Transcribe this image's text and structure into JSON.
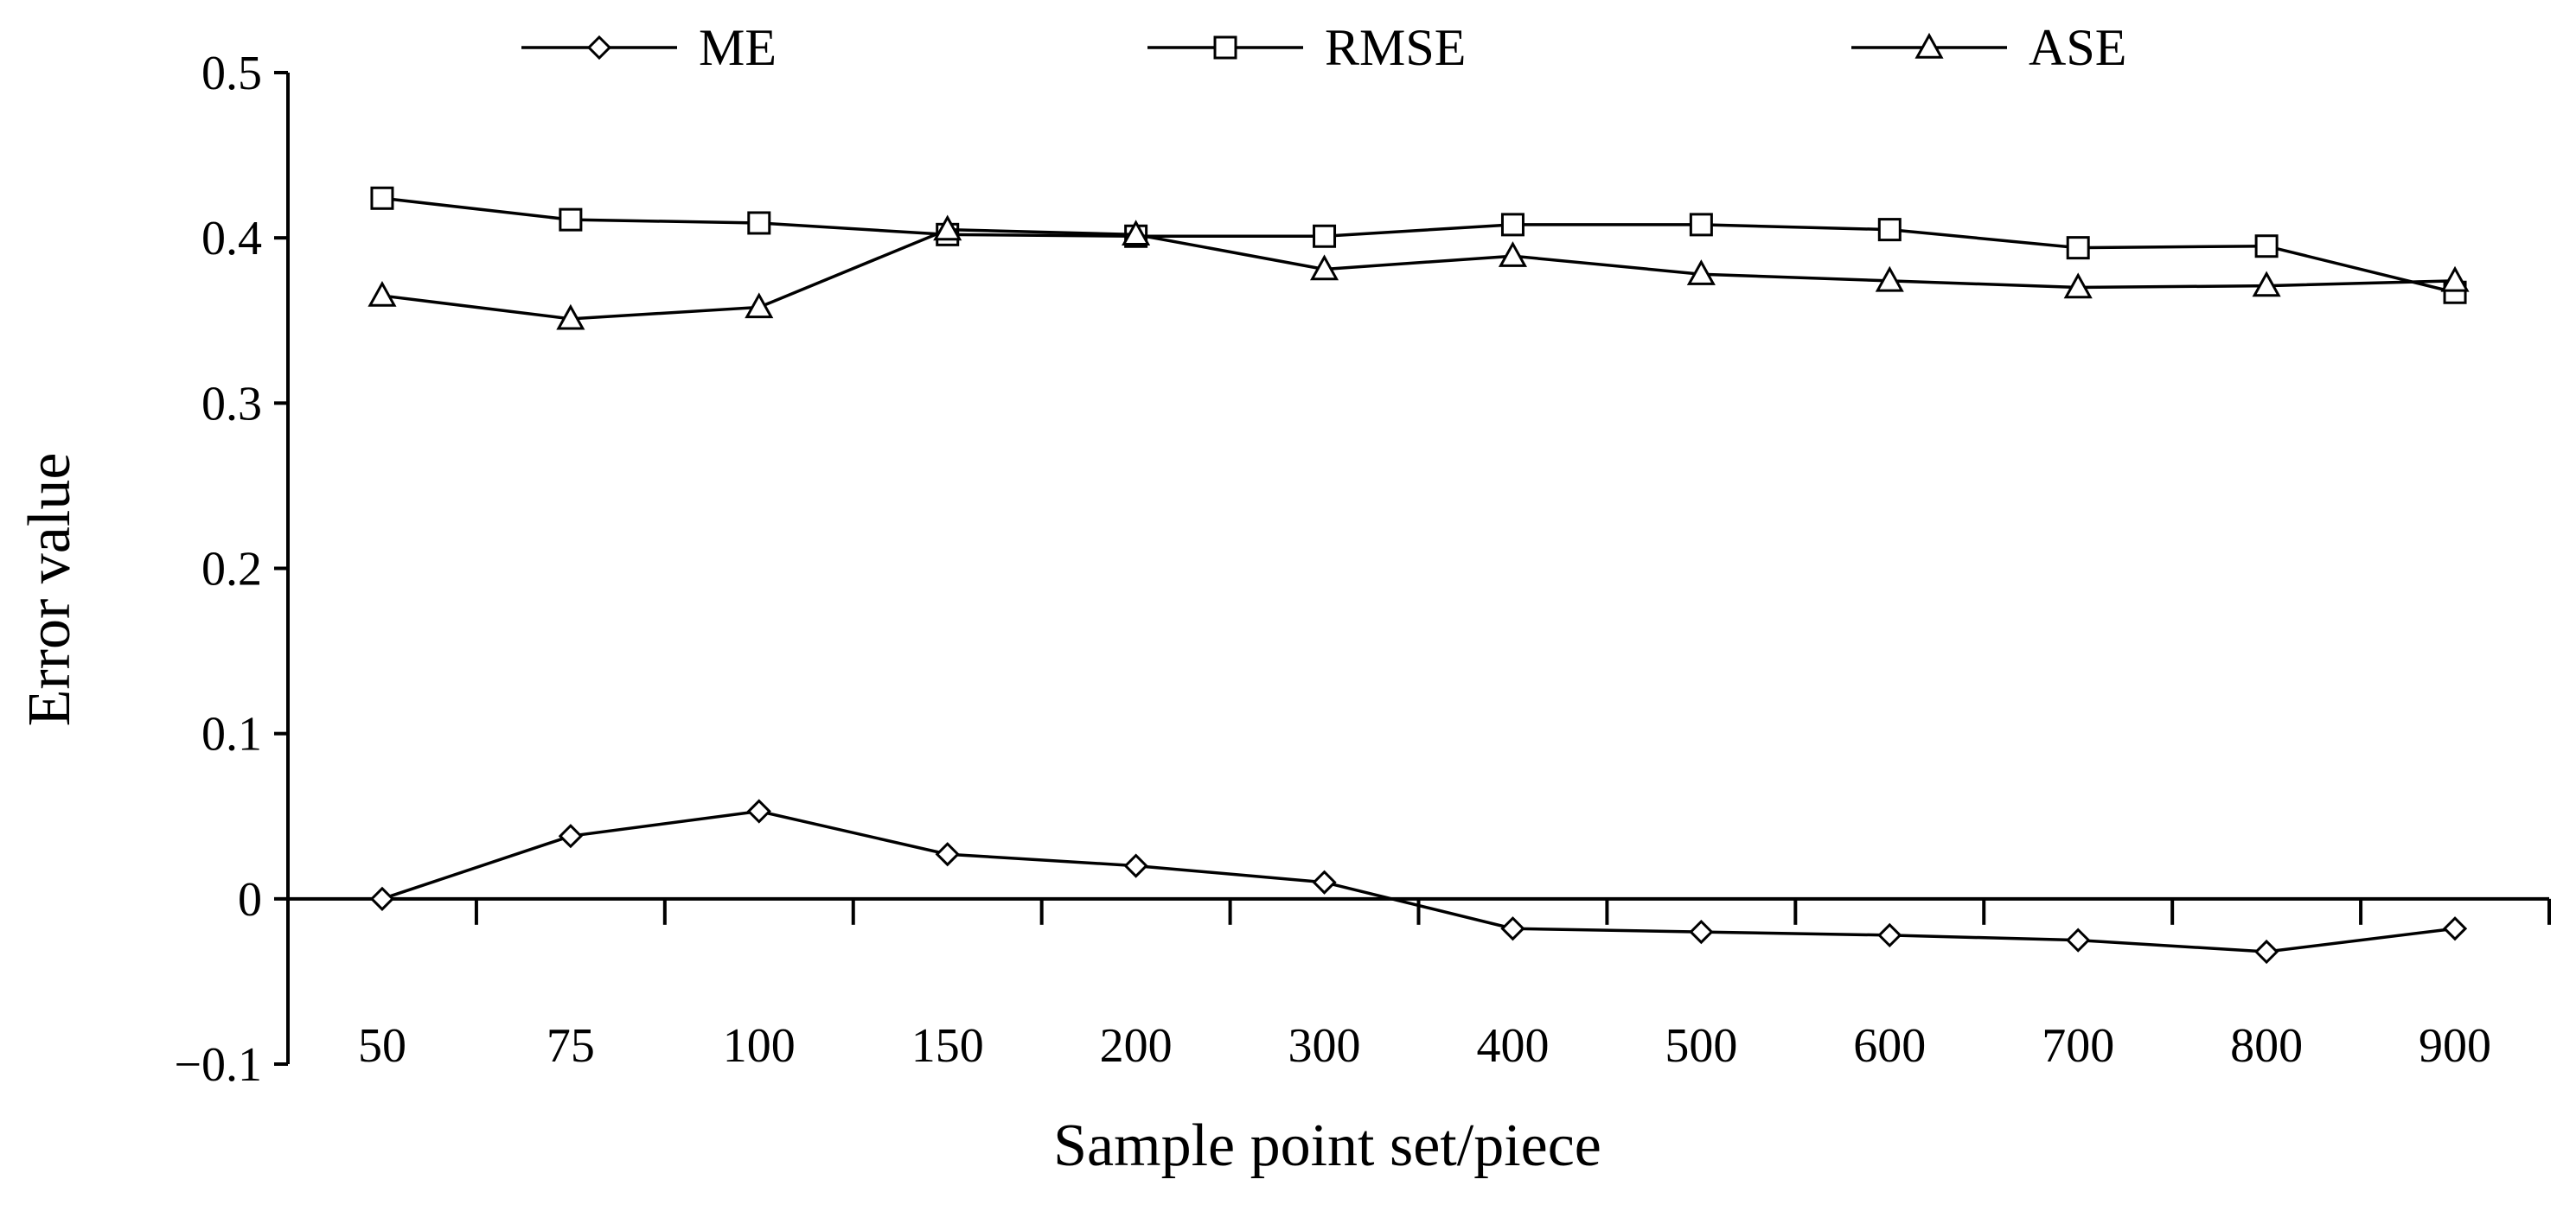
{
  "chart_data": {
    "type": "line",
    "categories": [
      "50",
      "75",
      "100",
      "150",
      "200",
      "300",
      "400",
      "500",
      "600",
      "700",
      "800",
      "900"
    ],
    "series": [
      {
        "name": "ME",
        "marker": "diamond",
        "values": [
          0.0,
          0.038,
          0.053,
          0.027,
          0.02,
          0.01,
          -0.018,
          -0.02,
          -0.022,
          -0.025,
          -0.032,
          -0.018
        ]
      },
      {
        "name": "RMSE",
        "marker": "square",
        "values": [
          0.424,
          0.411,
          0.409,
          0.402,
          0.401,
          0.401,
          0.408,
          0.408,
          0.405,
          0.394,
          0.395,
          0.367
        ]
      },
      {
        "name": "ASE",
        "marker": "triangle",
        "values": [
          0.365,
          0.351,
          0.358,
          0.405,
          0.402,
          0.381,
          0.389,
          0.378,
          0.374,
          0.37,
          0.371,
          0.374
        ]
      }
    ],
    "xlabel": "Sample point set/piece",
    "ylabel": "Error value",
    "ylim": [
      -0.1,
      0.5
    ],
    "yticks": [
      -0.1,
      0,
      0.1,
      0.2,
      0.3,
      0.4,
      0.5
    ],
    "ytick_labels": [
      "−0.1",
      "0",
      "0.1",
      "0.2",
      "0.3",
      "0.4",
      "0.5"
    ],
    "grid": false,
    "legend_position": "top"
  },
  "colors": {
    "line": "#000000",
    "marker_fill": "#ffffff"
  }
}
